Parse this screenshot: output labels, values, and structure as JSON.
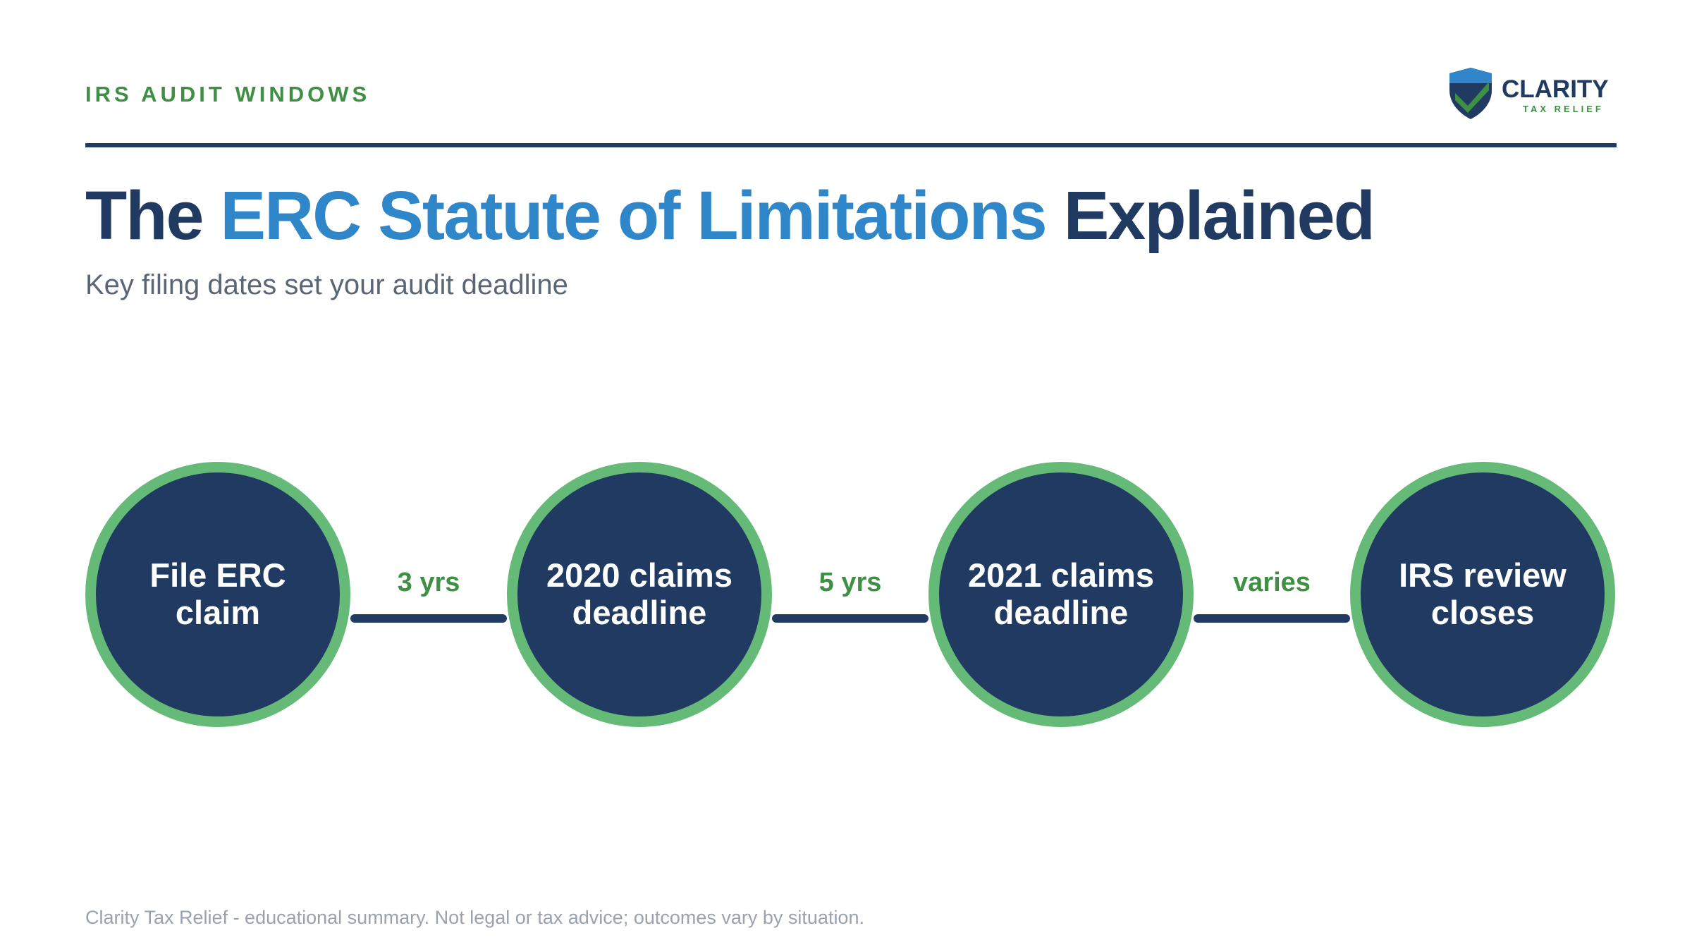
{
  "header": {
    "eyebrow": "IRS AUDIT WINDOWS",
    "logo": {
      "name": "CLARITY",
      "tagline": "TAX RELIEF",
      "icon": "shield-check-icon"
    }
  },
  "title": {
    "part1": "The ",
    "accent": "ERC Statute of Limitations",
    "part2": " Explained"
  },
  "subtitle": "Key filing dates set your audit deadline",
  "timeline": {
    "nodes": [
      {
        "label": "File ERC claim"
      },
      {
        "label": "2020 claims deadline"
      },
      {
        "label": "2021 claims deadline"
      },
      {
        "label": "IRS review closes"
      }
    ],
    "intervals": [
      {
        "label": "3 yrs"
      },
      {
        "label": "5 yrs"
      },
      {
        "label": "varies"
      }
    ]
  },
  "footer": "Clarity Tax Relief - educational summary. Not legal or tax advice; outcomes vary by situation.",
  "colors": {
    "navy": "#203a62",
    "blue_accent": "#2f86c9",
    "green": "#3f8f45",
    "green_ring": "#66ba78"
  }
}
